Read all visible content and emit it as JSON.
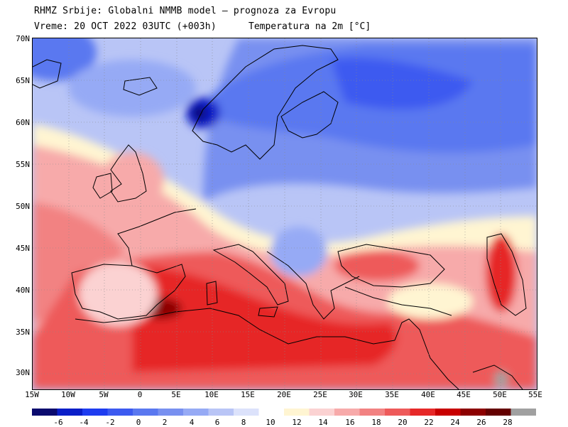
{
  "header": {
    "line1": "RHMZ Srbije: Globalni NMMB model – prognoza za Evropu",
    "line2_left": "Vreme: 20 OCT 2022 03UTC (+003h)",
    "line2_right": "Temperatura na 2m [°C]"
  },
  "axes": {
    "lat_labels": [
      "70N",
      "65N",
      "60N",
      "55N",
      "50N",
      "45N",
      "40N",
      "35N",
      "30N"
    ],
    "lon_labels": [
      "15W",
      "10W",
      "5W",
      "0",
      "5E",
      "10E",
      "15E",
      "20E",
      "25E",
      "30E",
      "35E",
      "40E",
      "45E",
      "50E",
      "55E"
    ]
  },
  "colorbar": {
    "labels": [
      "-6",
      "-4",
      "-2",
      "0",
      "2",
      "4",
      "6",
      "8",
      "10",
      "12",
      "14",
      "16",
      "18",
      "20",
      "22",
      "24",
      "26",
      "28"
    ],
    "colors": [
      "#0a0a6e",
      "#0a1ec8",
      "#1e3cf0",
      "#3c5af0",
      "#5a78f0",
      "#7890f0",
      "#96aaf5",
      "#b9c5f6",
      "#dce2fb",
      "#ffffff",
      "#fff5d2",
      "#fbd2d2",
      "#f7aaaa",
      "#f28282",
      "#ee5a5a",
      "#e62828",
      "#c80000",
      "#8c0000",
      "#640000",
      "#a0a0a0"
    ]
  }
}
